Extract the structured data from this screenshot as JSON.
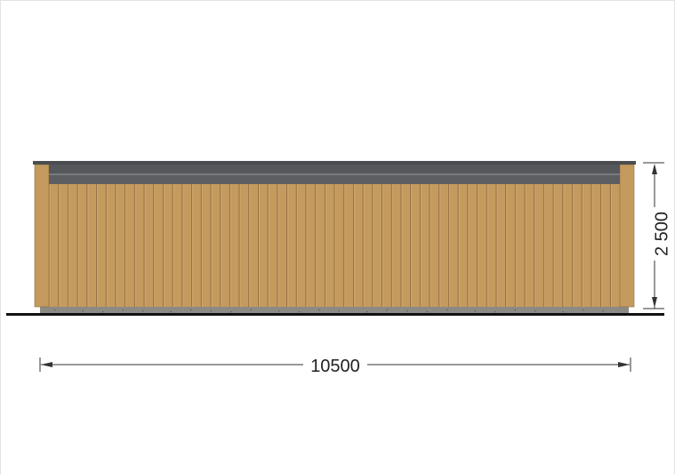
{
  "drawing": {
    "width_label": "10500",
    "height_label": "2 500"
  },
  "colors": {
    "cladding": "#c49a5e",
    "cladding_seam": "#8a6a3e",
    "cladding_highlight": "#d2ab70",
    "roof": "#4a4c50",
    "fascia": "#55575b",
    "gutter": "#5c5e62",
    "foundation": "#8c8a84",
    "ground": "#111111",
    "dimension": "#333333"
  }
}
